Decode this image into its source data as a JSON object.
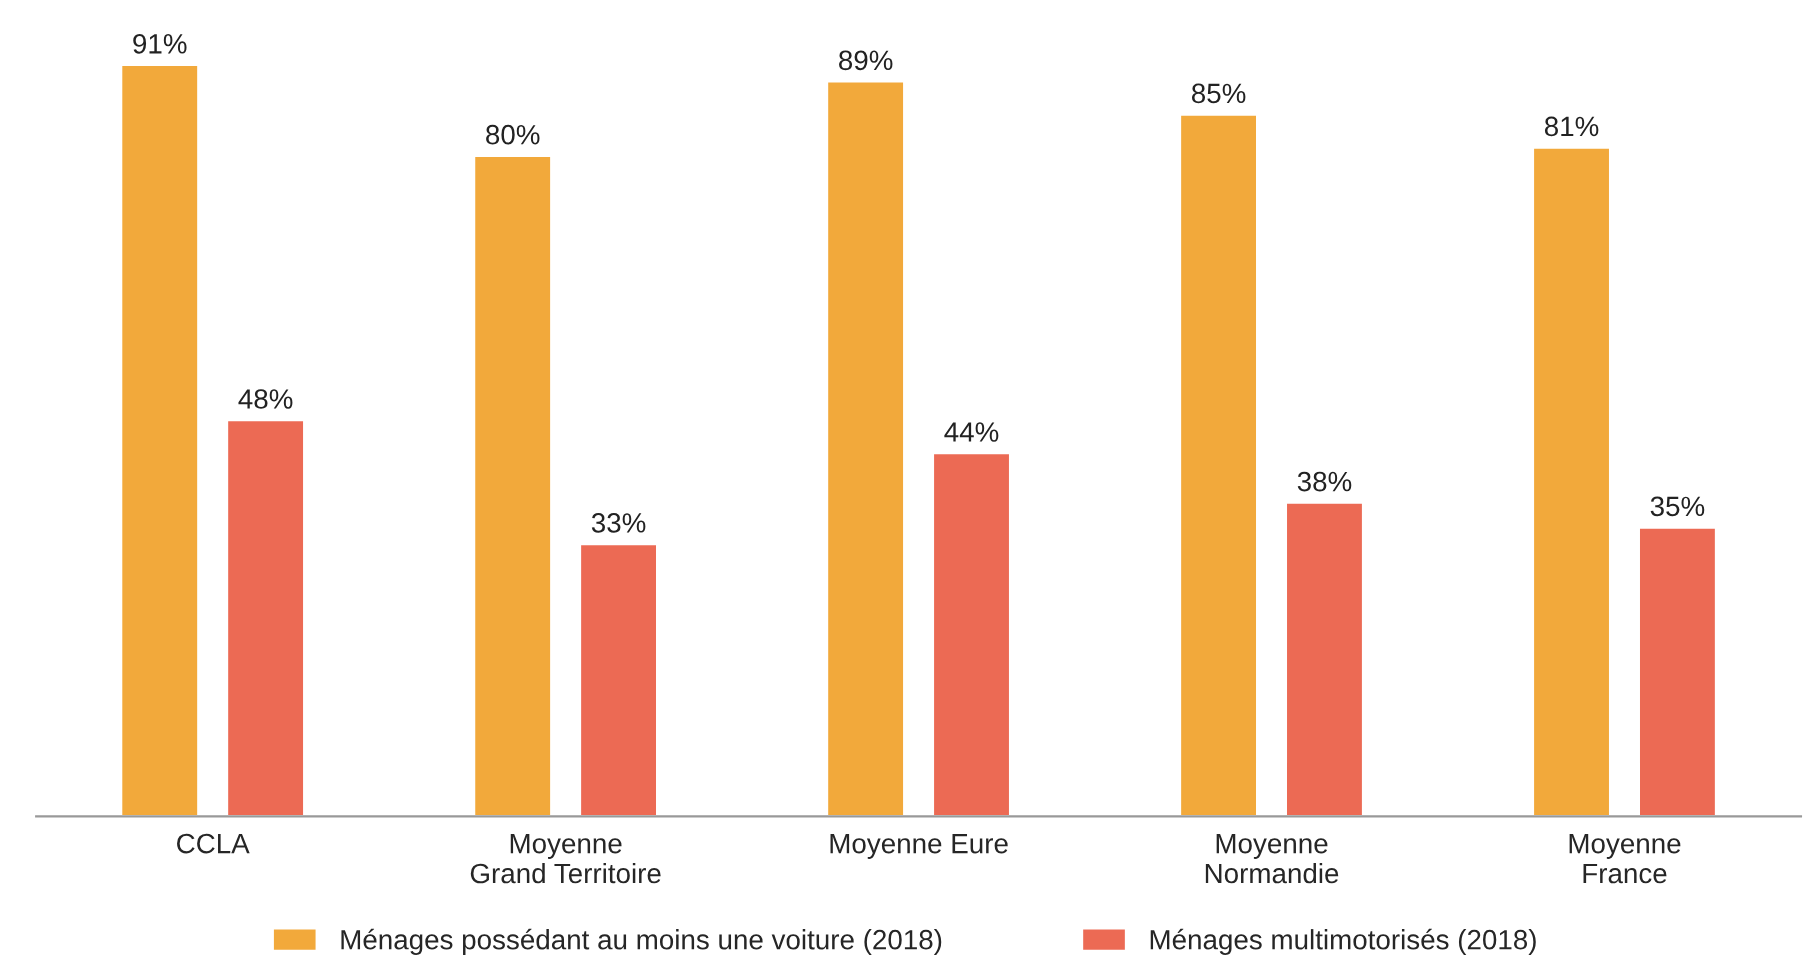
{
  "chart_data": {
    "type": "bar",
    "categories": [
      "CCLA",
      "Moyenne\nGrand Territoire",
      "Moyenne Eure",
      "Moyenne\nNormandie",
      "Moyenne\nFrance"
    ],
    "series": [
      {
        "name": "Ménages possédant au moins une voiture (2018)",
        "color": "#f2a93b",
        "values": [
          91,
          80,
          89,
          85,
          81
        ],
        "value_labels": [
          "91%",
          "80%",
          "89%",
          "85%",
          "81%"
        ]
      },
      {
        "name": "Ménages multimotorisés (2018)",
        "color": "#ec6a54",
        "values": [
          48,
          33,
          44,
          38,
          35
        ],
        "value_labels": [
          "48%",
          "33%",
          "44%",
          "38%",
          "35%"
        ]
      }
    ],
    "legend": "bottom",
    "grid": false
  }
}
